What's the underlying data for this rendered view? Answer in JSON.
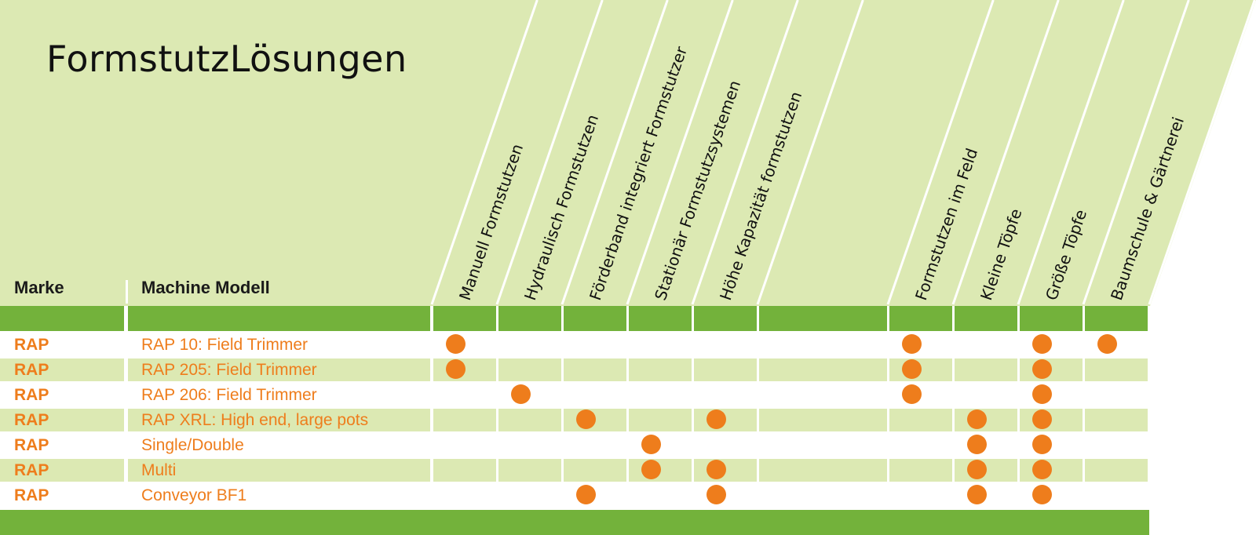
{
  "title": "FormstutzLösungen",
  "headers": {
    "brand": "Marke",
    "model": "Machine Modell"
  },
  "columns": [
    "Manuell Formstutzen",
    "Hydraulisch Formstutzen",
    "Förderband integriert Formstutzer",
    "Stationär Formstutzsystemen",
    "Höhe Kapazität formstutzen",
    "",
    "Formstutzen im Feld",
    "Kleine Töpfe",
    "Größe Töpfe",
    "Baumschule & Gärtnerei"
  ],
  "rows": [
    {
      "brand": "RAP",
      "model": "RAP 10: Field Trimmer",
      "marks": [
        true,
        false,
        false,
        false,
        false,
        false,
        true,
        false,
        true,
        true
      ]
    },
    {
      "brand": "RAP",
      "model": "RAP 205: Field Trimmer",
      "marks": [
        true,
        false,
        false,
        false,
        false,
        false,
        true,
        false,
        true,
        false
      ]
    },
    {
      "brand": "RAP",
      "model": "RAP 206: Field Trimmer",
      "marks": [
        false,
        true,
        false,
        false,
        false,
        false,
        true,
        false,
        true,
        false
      ]
    },
    {
      "brand": "RAP",
      "model": "RAP XRL: High end, large pots",
      "marks": [
        false,
        false,
        true,
        false,
        true,
        false,
        false,
        true,
        true,
        false
      ]
    },
    {
      "brand": "RAP",
      "model": "Single/Double",
      "marks": [
        false,
        false,
        false,
        true,
        false,
        false,
        false,
        true,
        true,
        false
      ]
    },
    {
      "brand": "RAP",
      "model": "Multi",
      "marks": [
        false,
        false,
        false,
        true,
        true,
        false,
        false,
        true,
        true,
        false
      ]
    },
    {
      "brand": "RAP",
      "model": "Conveyor BF1",
      "marks": [
        false,
        false,
        true,
        false,
        true,
        false,
        false,
        true,
        true,
        false
      ]
    }
  ],
  "colors": {
    "header_bg": "#dce9b3",
    "bar": "#73b23b",
    "accent": "#ee7d1c"
  }
}
